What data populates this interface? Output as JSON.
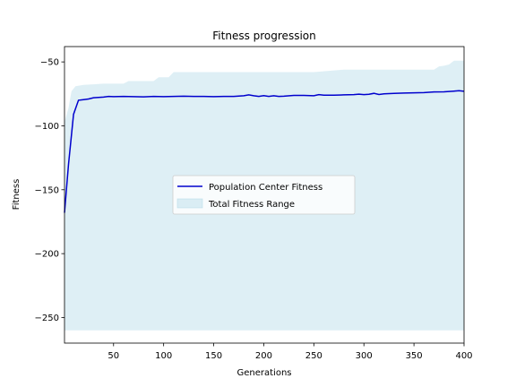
{
  "chart_data": {
    "type": "line",
    "title": "Fitness progression",
    "xlabel": "Generations",
    "ylabel": "Fitness",
    "xlim": [
      1,
      400
    ],
    "ylim": [
      -270,
      -38
    ],
    "xticks": [
      50,
      100,
      150,
      200,
      250,
      300,
      350,
      400
    ],
    "yticks": [
      -50,
      -100,
      -150,
      -200,
      -250
    ],
    "grid": false,
    "legend_position": "center",
    "series": [
      {
        "name": "Population Center Fitness",
        "kind": "line",
        "color": "#0000cd",
        "x": [
          1,
          5,
          10,
          15,
          20,
          25,
          30,
          35,
          40,
          45,
          50,
          60,
          70,
          80,
          90,
          100,
          110,
          120,
          130,
          140,
          150,
          160,
          170,
          180,
          185,
          190,
          195,
          200,
          205,
          210,
          215,
          220,
          230,
          240,
          250,
          255,
          260,
          270,
          280,
          290,
          295,
          300,
          305,
          310,
          315,
          320,
          330,
          340,
          350,
          360,
          370,
          380,
          390,
          395,
          400
        ],
        "y": [
          -168,
          -130,
          -91,
          -80,
          -79.5,
          -79,
          -78,
          -77.8,
          -77.5,
          -77,
          -77.2,
          -77,
          -77.2,
          -77.3,
          -77,
          -77.2,
          -77,
          -76.8,
          -77,
          -77,
          -77.2,
          -77,
          -77,
          -76.5,
          -75.8,
          -76.5,
          -77,
          -76.4,
          -77,
          -76.5,
          -77,
          -76.8,
          -76.2,
          -76.2,
          -76.5,
          -75.6,
          -76,
          -76,
          -75.8,
          -75.6,
          -75.2,
          -75.6,
          -75.3,
          -74.6,
          -75.5,
          -75,
          -74.6,
          -74.4,
          -74.2,
          -74,
          -73.5,
          -73.4,
          -72.8,
          -72.5,
          -73
        ]
      },
      {
        "name": "Total Fitness Range",
        "kind": "area",
        "color": "#add8e6",
        "x": [
          1,
          5,
          8,
          12,
          20,
          30,
          40,
          50,
          60,
          65,
          70,
          80,
          90,
          95,
          100,
          105,
          110,
          120,
          150,
          200,
          250,
          280,
          300,
          320,
          340,
          350,
          360,
          370,
          375,
          380,
          385,
          390,
          400
        ],
        "upper": [
          -97,
          -86,
          -73,
          -69,
          -68,
          -67.5,
          -67,
          -67,
          -67,
          -65,
          -65,
          -65,
          -65,
          -62,
          -62,
          -62,
          -58,
          -58,
          -58,
          -58,
          -58,
          -56,
          -56,
          -56,
          -56,
          -56,
          -56,
          -56,
          -53.5,
          -53,
          -52,
          -49,
          -49
        ],
        "lower": [
          -260,
          -260,
          -260,
          -260,
          -260,
          -260,
          -260,
          -260,
          -260,
          -260,
          -260,
          -260,
          -260,
          -260,
          -260,
          -260,
          -260,
          -260,
          -260,
          -260,
          -260,
          -260,
          -260,
          -260,
          -260,
          -260,
          -260,
          -260,
          -260,
          -260,
          -260,
          -260,
          -260
        ]
      }
    ]
  }
}
